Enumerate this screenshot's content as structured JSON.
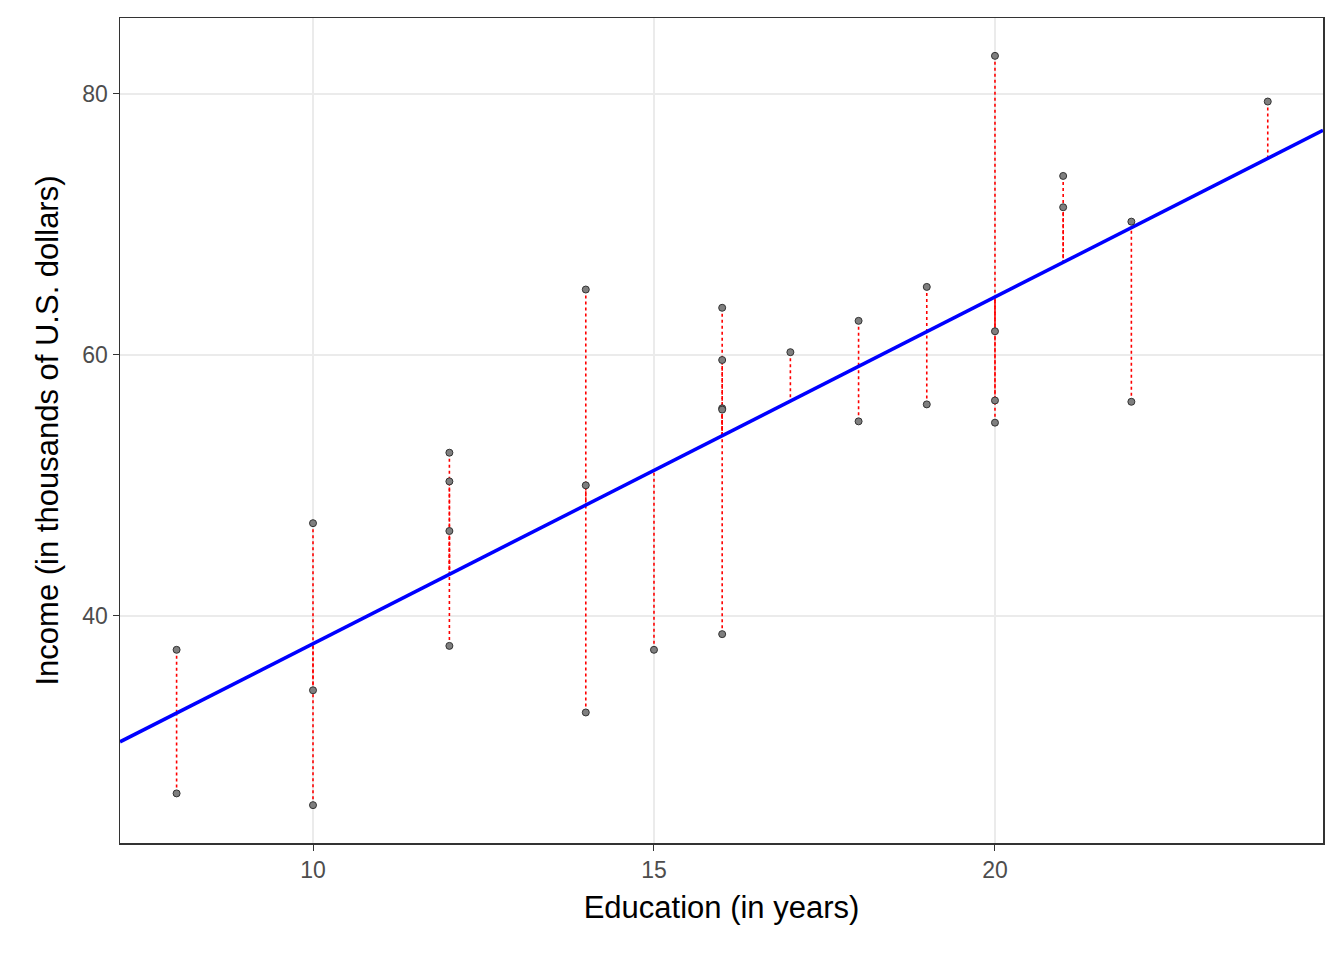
{
  "chart_data": {
    "type": "scatter",
    "x_label": "Education (in years)",
    "y_label": "Income (in thousands of U.S. dollars)",
    "xlim": [
      7.17,
      24.81
    ],
    "ylim": [
      22.6,
      85.8
    ],
    "xticks": [
      10,
      15,
      20
    ],
    "yticks": [
      40,
      60,
      80
    ],
    "grid": true,
    "series": [
      {
        "type": "residual",
        "color": "#ff0000",
        "line_style": "dotted"
      },
      {
        "type": "line",
        "color": "#0000ff",
        "line_style": "solid",
        "x": [
          7.17,
          24.81
        ],
        "values": [
          30.35,
          77.2
        ]
      },
      {
        "type": "scatter",
        "color": "#7f7f7f",
        "marker": "circle",
        "x": [
          8,
          8,
          10,
          10,
          10,
          12,
          12,
          12,
          12,
          14,
          14,
          14,
          15,
          16,
          16,
          16,
          16,
          16,
          17,
          18,
          18,
          19,
          19,
          20,
          20,
          20,
          20,
          21,
          21,
          22,
          22,
          24
        ],
        "values": [
          37.4,
          26.4,
          47.1,
          34.3,
          25.5,
          52.5,
          50.3,
          46.5,
          37.7,
          65.0,
          50.0,
          32.6,
          37.4,
          63.6,
          59.6,
          55.9,
          55.8,
          38.6,
          60.2,
          62.6,
          54.9,
          65.2,
          56.2,
          82.9,
          61.8,
          56.5,
          54.8,
          73.7,
          71.3,
          70.2,
          56.4,
          79.4
        ],
        "fitted": [
          32.56,
          32.56,
          37.87,
          37.87,
          37.87,
          43.18,
          43.18,
          43.18,
          43.18,
          48.49,
          48.49,
          48.49,
          51.15,
          53.81,
          53.81,
          53.81,
          53.81,
          53.81,
          56.46,
          59.12,
          59.12,
          61.77,
          61.77,
          64.43,
          64.43,
          64.43,
          64.43,
          67.09,
          67.09,
          69.74,
          69.74,
          75.05
        ]
      }
    ]
  }
}
